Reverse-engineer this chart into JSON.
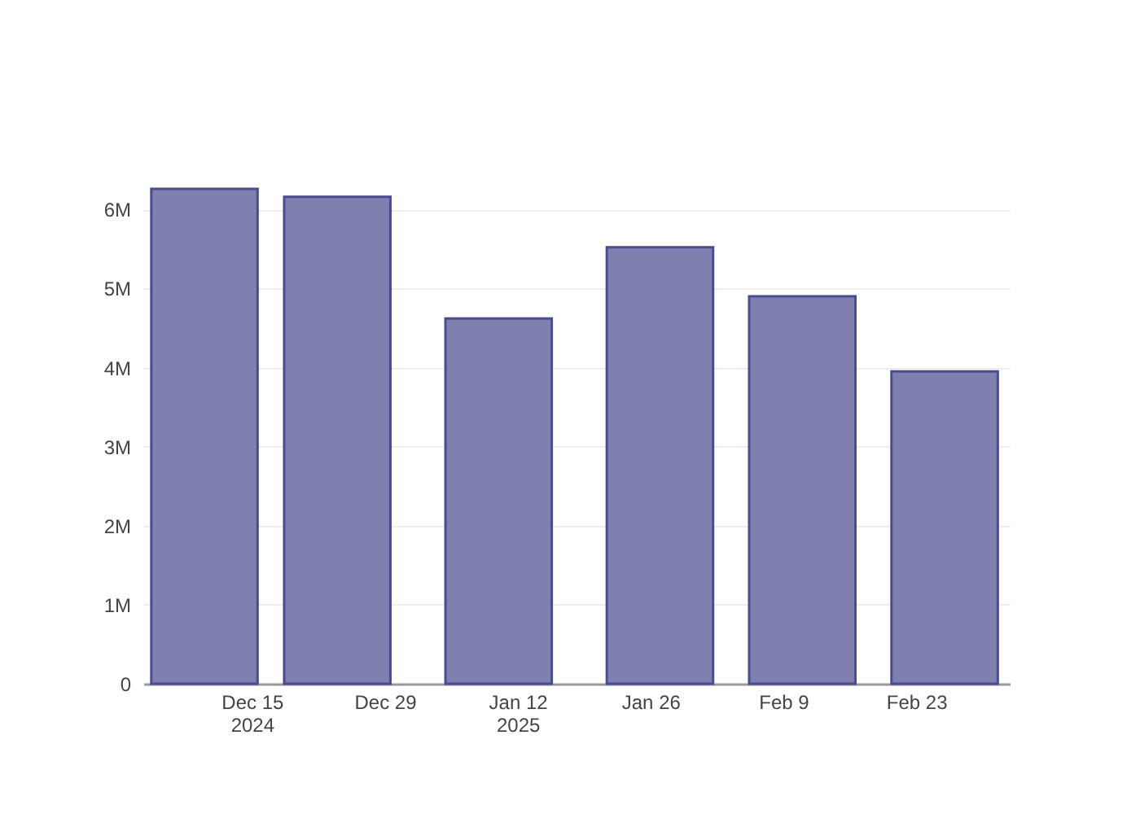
{
  "chart_data": {
    "type": "bar",
    "x": [
      "2024-12-10",
      "2024-12-24",
      "2025-01-10",
      "2025-01-27",
      "2025-02-11",
      "2025-02-26"
    ],
    "values": [
      6260000,
      6160000,
      4620000,
      5520000,
      4900000,
      3950000
    ],
    "color": "#7f80b0",
    "xlim": [
      "2024-12-04T10:00",
      "2025-03-04T00:00"
    ],
    "xticks": [
      {
        "value": "2024-12-15",
        "label": "Dec 15\n2024"
      },
      {
        "value": "2024-12-29",
        "label": "Dec 29"
      },
      {
        "value": "2025-01-12",
        "label": "Jan 12\n2025"
      },
      {
        "value": "2025-01-26",
        "label": "Jan 26"
      },
      {
        "value": "2025-02-09",
        "label": "Feb 9"
      },
      {
        "value": "2025-02-23",
        "label": "Feb 23"
      }
    ],
    "yticks": [
      0,
      {
        "value": 1000000,
        "label": "1M"
      },
      {
        "value": 2000000,
        "label": "2M"
      },
      {
        "value": 3000000,
        "label": "3M"
      },
      {
        "value": 4000000,
        "label": "4M"
      },
      {
        "value": 5000000,
        "label": "5M"
      },
      {
        "value": 6000000,
        "label": "6M"
      }
    ],
    "ylim": [
      0,
      6260000
    ],
    "grid": "y"
  }
}
